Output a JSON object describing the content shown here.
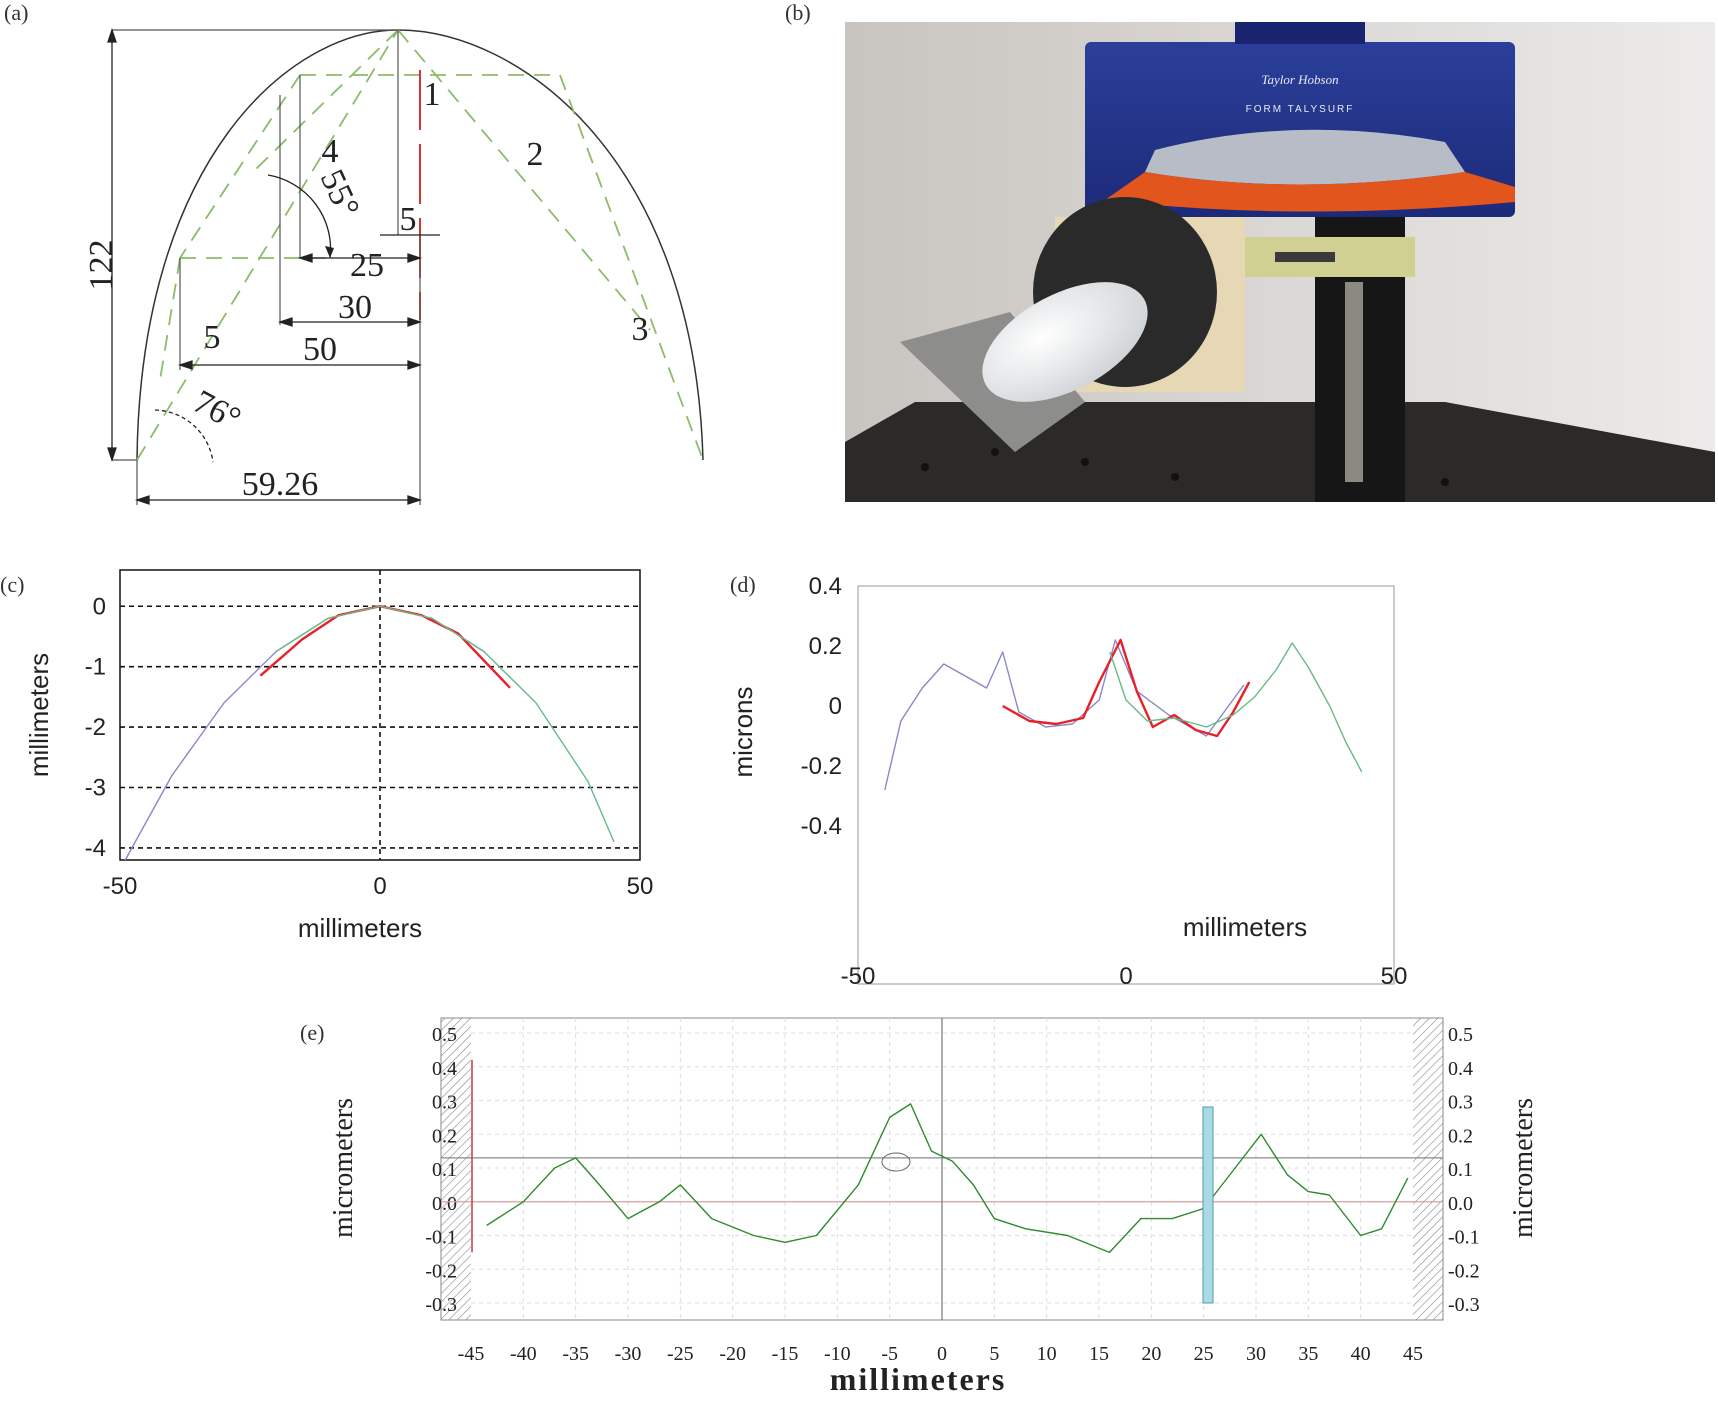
{
  "panels": {
    "a": {
      "label": "(a)",
      "dims": {
        "height": "122",
        "d59": "59.26",
        "d50": "50",
        "d30": "30",
        "d25": "25",
        "d5a": "5",
        "d5b": "5",
        "a76": "76°",
        "a55": "55°"
      },
      "numbers": [
        "1",
        "2",
        "3",
        "4"
      ]
    },
    "b": {
      "label": "(b)",
      "brand": "Taylor Hobson",
      "model": "FORM TALYSURF"
    },
    "c": {
      "label": "(c)",
      "xlabel": "millimeters",
      "ylabel": "millimeters"
    },
    "d": {
      "label": "(d)",
      "xlabel": "millimeters",
      "ylabel": "microns"
    },
    "e": {
      "label": "(e)",
      "xlabel": "millimeters",
      "ylabel_left": "micrometers",
      "ylabel_right": "micrometers"
    }
  },
  "chart_data": [
    {
      "panel": "c",
      "type": "line",
      "xlabel": "millimeters",
      "ylabel": "millimeters",
      "xlim": [
        -50,
        50
      ],
      "ylim": [
        -4.2,
        0.6
      ],
      "xticks": [
        -50,
        0,
        50
      ],
      "yticks": [
        0,
        -1,
        -2,
        -3,
        -4
      ],
      "grid": "dashed",
      "series": [
        {
          "color": "#8888cc",
          "x": [
            -49,
            -40,
            -30,
            -20,
            -10,
            0,
            10,
            20
          ],
          "y": [
            -4.2,
            -2.8,
            -1.6,
            -0.75,
            -0.2,
            0,
            -0.2,
            -0.75
          ]
        },
        {
          "color": "#e8202a",
          "x": [
            -23,
            -15,
            -8,
            0,
            8,
            15,
            25
          ],
          "y": [
            -1.15,
            -0.55,
            -0.15,
            0,
            -0.15,
            -0.45,
            -1.35
          ]
        },
        {
          "color": "#66bb88",
          "x": [
            -20,
            -10,
            0,
            10,
            20,
            30,
            40,
            45
          ],
          "y": [
            -0.75,
            -0.2,
            0,
            -0.2,
            -0.75,
            -1.6,
            -2.9,
            -3.9
          ]
        }
      ]
    },
    {
      "panel": "d",
      "type": "line",
      "xlabel": "millimeters",
      "ylabel": "microns",
      "xlim": [
        -50,
        50
      ],
      "ylim": [
        -0.4,
        0.4
      ],
      "xticks": [
        -50,
        0,
        50
      ],
      "yticks": [
        0.4,
        0.2,
        0,
        -0.2,
        -0.4
      ],
      "series": [
        {
          "color": "#8888cc",
          "x": [
            -45,
            -42,
            -38,
            -34,
            -30,
            -26,
            -23,
            -20,
            -15,
            -10,
            -5,
            -2,
            2,
            8,
            15,
            22
          ],
          "y": [
            -0.28,
            -0.05,
            0.06,
            0.14,
            0.1,
            0.06,
            0.18,
            -0.02,
            -0.07,
            -0.06,
            0.02,
            0.22,
            0.05,
            -0.03,
            -0.1,
            0.07
          ]
        },
        {
          "color": "#e8202a",
          "x": [
            -23,
            -18,
            -13,
            -8,
            -5,
            -3,
            -1,
            2,
            5,
            9,
            13,
            17,
            20,
            23
          ],
          "y": [
            0.0,
            -0.05,
            -0.06,
            -0.04,
            0.08,
            0.15,
            0.22,
            0.05,
            -0.07,
            -0.03,
            -0.08,
            -0.1,
            -0.02,
            0.08
          ]
        },
        {
          "color": "#66bb88",
          "x": [
            -3,
            0,
            4,
            9,
            15,
            20,
            24,
            28,
            31,
            34,
            38,
            41,
            44
          ],
          "y": [
            0.18,
            0.02,
            -0.05,
            -0.04,
            -0.07,
            -0.03,
            0.03,
            0.12,
            0.21,
            0.13,
            0.0,
            -0.12,
            -0.22
          ]
        }
      ]
    },
    {
      "panel": "e",
      "type": "line",
      "xlabel": "millimeters",
      "ylabel": "micrometers",
      "xlim": [
        -45,
        45
      ],
      "ylim": [
        -0.3,
        0.5
      ],
      "xticks": [
        -45,
        -40,
        -35,
        -30,
        -25,
        -20,
        -15,
        -10,
        -5,
        0,
        5,
        10,
        15,
        20,
        25,
        30,
        35,
        40,
        45
      ],
      "yticks": [
        0.5,
        0.4,
        0.3,
        0.2,
        0.1,
        0.0,
        -0.1,
        -0.2,
        -0.3
      ],
      "reference_lines": [
        {
          "axis": "y",
          "value": 0.13
        },
        {
          "axis": "y",
          "value": 0.0
        },
        {
          "axis": "x",
          "value": 0
        }
      ],
      "series": [
        {
          "color": "#2e8b2e",
          "x": [
            -43.5,
            -40,
            -37,
            -35,
            -33,
            -30,
            -27,
            -25,
            -22,
            -18,
            -15,
            -12,
            -8,
            -5,
            -3,
            -1,
            1,
            3,
            5,
            8,
            12,
            16,
            19,
            22,
            25,
            28,
            30.5,
            33,
            35,
            37,
            40,
            42,
            44.5
          ],
          "y": [
            -0.07,
            0.0,
            0.1,
            0.13,
            0.06,
            -0.05,
            0.0,
            0.05,
            -0.05,
            -0.1,
            -0.12,
            -0.1,
            0.05,
            0.25,
            0.29,
            0.15,
            0.12,
            0.05,
            -0.05,
            -0.08,
            -0.1,
            -0.15,
            -0.05,
            -0.05,
            -0.02,
            0.1,
            0.2,
            0.08,
            0.03,
            0.02,
            -0.1,
            -0.08,
            0.07
          ]
        }
      ]
    }
  ]
}
